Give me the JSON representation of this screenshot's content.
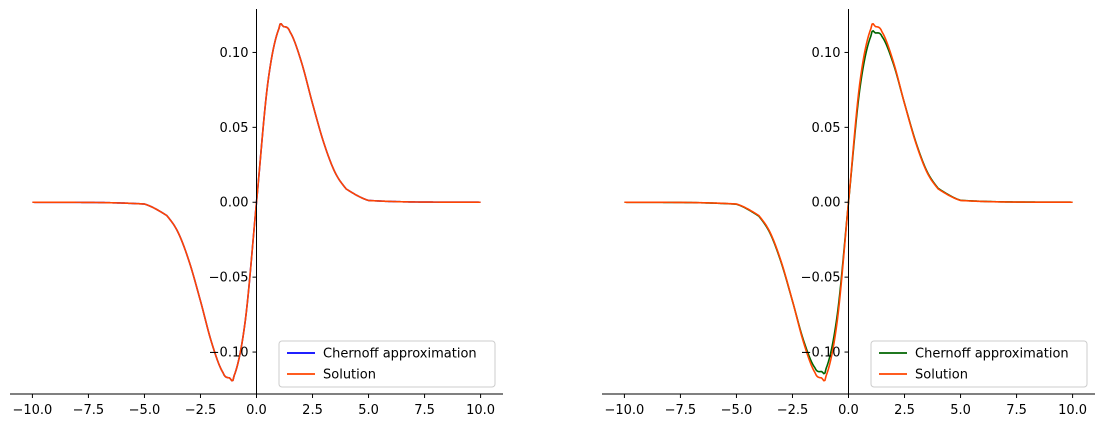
{
  "chart_data": [
    {
      "type": "line",
      "title": "",
      "xlabel": "",
      "ylabel": "",
      "xlim": [
        -11.0,
        11.0
      ],
      "ylim": [
        -0.128,
        0.129
      ],
      "x_ticks": [
        -10.0,
        -7.5,
        -5.0,
        -2.5,
        0.0,
        2.5,
        5.0,
        7.5,
        10.0
      ],
      "x_tick_labels": [
        "−10.0",
        "−7.5",
        "−5.0",
        "−2.5",
        "0.0",
        "2.5",
        "5.0",
        "7.5",
        "10.0"
      ],
      "y_ticks": [
        0.1,
        0.05,
        0.0,
        -0.05,
        -0.1
      ],
      "y_tick_labels": [
        "0.10",
        "0.05",
        "0.00",
        "−0.05",
        "−0.10"
      ],
      "grid": false,
      "legend_position": "lower-right",
      "spines": "centered-y-axis",
      "series": [
        {
          "name": "Chernoff approximation",
          "color": "#0000ff",
          "x": [
            -10.0,
            -5.0,
            -4.0,
            -3.5,
            -3.0,
            -2.5,
            -2.0,
            -1.5,
            -1.2,
            -1.0,
            -0.5,
            0.0,
            0.5,
            1.0,
            1.2,
            1.5,
            2.0,
            2.5,
            3.0,
            3.5,
            4.0,
            5.0,
            10.0
          ],
          "y": [
            0.0,
            -0.0012,
            -0.0089,
            -0.0201,
            -0.0398,
            -0.0659,
            -0.0938,
            -0.1136,
            -0.1173,
            -0.1159,
            -0.079,
            0.0,
            0.079,
            0.1159,
            0.1173,
            0.1136,
            0.0938,
            0.0659,
            0.0398,
            0.0201,
            0.0089,
            0.0012,
            0.0
          ]
        },
        {
          "name": "Solution",
          "color": "#ff4500",
          "x": [
            -10.0,
            -5.0,
            -4.0,
            -3.5,
            -3.0,
            -2.5,
            -2.0,
            -1.5,
            -1.2,
            -1.0,
            -0.5,
            0.0,
            0.5,
            1.0,
            1.2,
            1.5,
            2.0,
            2.5,
            3.0,
            3.5,
            4.0,
            5.0,
            10.0
          ],
          "y": [
            0.0,
            -0.0012,
            -0.0089,
            -0.0201,
            -0.0398,
            -0.0659,
            -0.0938,
            -0.1136,
            -0.1173,
            -0.1159,
            -0.079,
            0.0,
            0.079,
            0.1159,
            0.1173,
            0.1136,
            0.0938,
            0.0659,
            0.0398,
            0.0201,
            0.0089,
            0.0012,
            0.0
          ]
        }
      ]
    },
    {
      "type": "line",
      "title": "",
      "xlabel": "",
      "ylabel": "",
      "xlim": [
        -11.0,
        11.0
      ],
      "ylim": [
        -0.128,
        0.129
      ],
      "x_ticks": [
        -10.0,
        -7.5,
        -5.0,
        -2.5,
        0.0,
        2.5,
        5.0,
        7.5,
        10.0
      ],
      "x_tick_labels": [
        "−10.0",
        "−7.5",
        "−5.0",
        "−2.5",
        "0.0",
        "2.5",
        "5.0",
        "7.5",
        "10.0"
      ],
      "y_ticks": [
        0.1,
        0.05,
        0.0,
        -0.05,
        -0.1
      ],
      "y_tick_labels": [
        "0.10",
        "0.05",
        "0.00",
        "−0.05",
        "−0.10"
      ],
      "grid": false,
      "legend_position": "lower-right",
      "spines": "centered-y-axis",
      "series": [
        {
          "name": "Chernoff approximation",
          "color": "#006400",
          "x": [
            -10.0,
            -5.0,
            -4.0,
            -3.5,
            -3.0,
            -2.5,
            -2.0,
            -1.5,
            -1.2,
            -1.0,
            -0.5,
            0.0,
            0.5,
            1.0,
            1.2,
            1.5,
            2.0,
            2.5,
            3.0,
            3.5,
            4.0,
            5.0,
            10.0
          ],
          "y": [
            0.0,
            -0.0013,
            -0.0093,
            -0.0207,
            -0.0404,
            -0.066,
            -0.0925,
            -0.1105,
            -0.113,
            -0.111,
            -0.075,
            0.0,
            0.075,
            0.111,
            0.113,
            0.1105,
            0.0925,
            0.066,
            0.0404,
            0.0207,
            0.0093,
            0.0013,
            0.0
          ]
        },
        {
          "name": "Solution",
          "color": "#ff4500",
          "x": [
            -10.0,
            -5.0,
            -4.0,
            -3.5,
            -3.0,
            -2.5,
            -2.0,
            -1.5,
            -1.2,
            -1.0,
            -0.5,
            0.0,
            0.5,
            1.0,
            1.2,
            1.5,
            2.0,
            2.5,
            3.0,
            3.5,
            4.0,
            5.0,
            10.0
          ],
          "y": [
            0.0,
            -0.0012,
            -0.0089,
            -0.0201,
            -0.0398,
            -0.0659,
            -0.0938,
            -0.1136,
            -0.1173,
            -0.1159,
            -0.079,
            0.0,
            0.079,
            0.1159,
            0.1173,
            0.1136,
            0.0938,
            0.0659,
            0.0398,
            0.0201,
            0.0089,
            0.0012,
            0.0
          ]
        }
      ]
    }
  ]
}
